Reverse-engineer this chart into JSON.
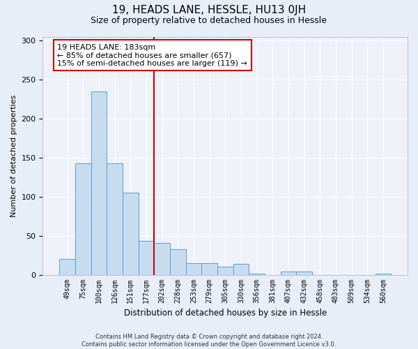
{
  "title": "19, HEADS LANE, HESSLE, HU13 0JH",
  "subtitle": "Size of property relative to detached houses in Hessle",
  "xlabel": "Distribution of detached houses by size in Hessle",
  "ylabel": "Number of detached properties",
  "categories": [
    "49sqm",
    "75sqm",
    "100sqm",
    "126sqm",
    "151sqm",
    "177sqm",
    "202sqm",
    "228sqm",
    "253sqm",
    "279sqm",
    "305sqm",
    "330sqm",
    "356sqm",
    "381sqm",
    "407sqm",
    "432sqm",
    "458sqm",
    "483sqm",
    "509sqm",
    "534sqm",
    "560sqm"
  ],
  "values": [
    20,
    143,
    235,
    143,
    105,
    43,
    41,
    33,
    15,
    15,
    10,
    14,
    1,
    0,
    4,
    4,
    0,
    0,
    0,
    0,
    1
  ],
  "bar_color": "#c8dcf0",
  "bar_edge_color": "#5b9bd5",
  "vline_x_index": 5.5,
  "vline_color": "#cc0000",
  "annotation_text": "19 HEADS LANE: 183sqm\n← 85% of detached houses are smaller (657)\n15% of semi-detached houses are larger (119) →",
  "annotation_box_color": "#ffffff",
  "annotation_box_edge": "#cc0000",
  "ylim": [
    0,
    305
  ],
  "yticks": [
    0,
    50,
    100,
    150,
    200,
    250,
    300
  ],
  "footer_line1": "Contains HM Land Registry data © Crown copyright and database right 2024.",
  "footer_line2": "Contains public sector information licensed under the Open Government Licence v3.0.",
  "background_color": "#e8eef8",
  "plot_background": "#eef2f8",
  "grid_color": "#ffffff",
  "title_fontsize": 11,
  "subtitle_fontsize": 9,
  "ylabel_text": "Number of detached properties"
}
